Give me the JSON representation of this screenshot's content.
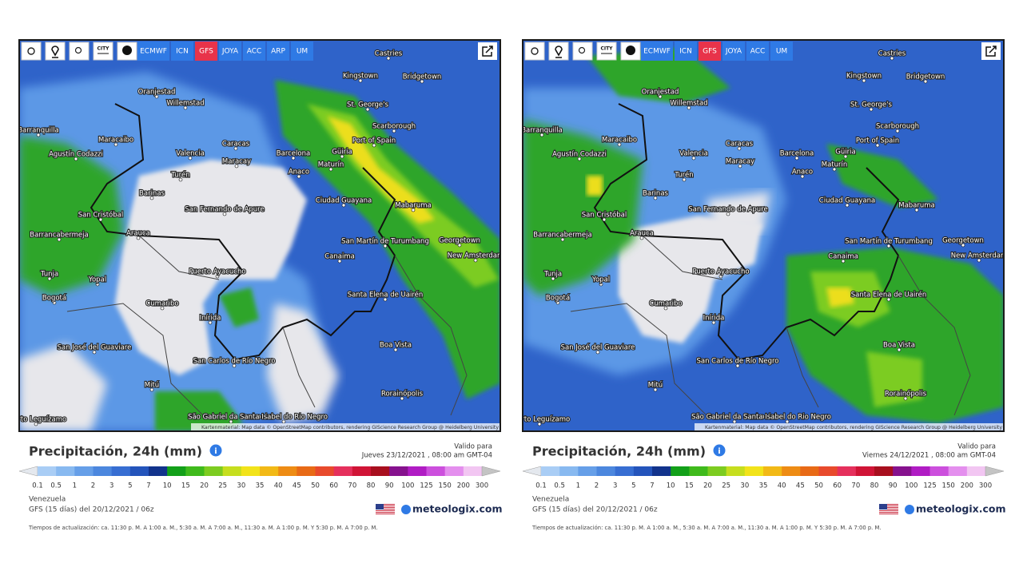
{
  "map": {
    "city_toggle": "CITY",
    "attribution": "Kartenmaterial: Map data © OpenStreetMap contributors, rendering GIScience Research Group @ Heidelberg University",
    "cities": [
      "Castries",
      "Kingstown",
      "Bridgetown",
      "Oranjestad",
      "Willemstad",
      "St. George's",
      "Scarborough",
      "Barranquilla",
      "Port of Spain",
      "Maracaibo",
      "Caracas",
      "Agustín Codazzi",
      "Valencia",
      "Barcelona",
      "Güiria",
      "Maracay",
      "Maturín",
      "Anaco",
      "Turén",
      "Barinas",
      "Ciudad Guayana",
      "Mabaruma",
      "San Fernando de Apure",
      "San Cristóbal",
      "Barrancabermeja",
      "Arauca",
      "Georgetown",
      "San Martín de Turumbang",
      "Canaima",
      "New Amsterdam",
      "Tunja",
      "Yopal",
      "Puerto Ayacucho",
      "Santa Elena de Uairén",
      "Bogotá",
      "Cumaribo",
      "Inírida",
      "Boa Vista",
      "San José del Guaviare",
      "San Carlos de Río Negro",
      "Mitú",
      "Rorainópolis",
      "São Gabriel da Cachoeira",
      "Santa Isabel do Rio Negro",
      "Puerto Leguízamo"
    ]
  },
  "legend": {
    "values": [
      0.1,
      0.5,
      1,
      2,
      3,
      5,
      7,
      10,
      15,
      20,
      25,
      30,
      35,
      40,
      45,
      50,
      60,
      70,
      80,
      90,
      100,
      125,
      150,
      200,
      300
    ],
    "colors": [
      "#e4e8ee",
      "#a9cdf5",
      "#88b9f0",
      "#669fe8",
      "#4c87de",
      "#376ed2",
      "#2454bb",
      "#12338c",
      "#13a019",
      "#3fba1c",
      "#7dcc20",
      "#c6de1e",
      "#f2e31a",
      "#f2b916",
      "#ee8c14",
      "#e86a16",
      "#e84a2c",
      "#e5305c",
      "#d01436",
      "#a80f1e",
      "#86128e",
      "#b01cc4",
      "#cc4fdd",
      "#e48fee",
      "#f2c6f2",
      "#c4c4c4"
    ]
  },
  "panels": [
    {
      "toolbar": [
        "ECMWF",
        "ICN",
        "GFS",
        "JOYA",
        "ACC",
        "ARP",
        "UM"
      ],
      "active_index": 2,
      "title": "Precipitación, 24h (mm)",
      "valid_label": "Valido para",
      "valid_time": "Jueves 23/12/2021 , 08:00 am GMT-04",
      "region": "Venezuela",
      "model_run": "GFS (15 días) del 20/12/2021 / 06z",
      "brand": "meteologix.com",
      "update_times": "Tiempos de actualización: ca. 11:30 p. M. A 1:00 a. M., 5:30 a. M. A 7:00 a. M., 11:30 a. M. A 1:00 p. M. Y 5:30 p. M. A 7:00 p. M."
    },
    {
      "toolbar": [
        "ECMWF",
        "ICN",
        "GFS",
        "JOYA",
        "ACC",
        "UM"
      ],
      "active_index": 2,
      "title": "Precipitación, 24h (mm)",
      "valid_label": "Valido para",
      "valid_time": "Viernes 24/12/2021 , 08:00 am GMT-04",
      "region": "Venezuela",
      "model_run": "GFS (15 días) del 20/12/2021 / 06z",
      "brand": "meteologix.com",
      "update_times": "Tiempos de actualización: ca. 11:30 p. M. A 1:00 a. M., 5:30 a. M. A 7:00 a. M., 11:30 a. M. A 1:00 p. M. Y 5:30 p. M. A 7:00 p. M."
    }
  ]
}
